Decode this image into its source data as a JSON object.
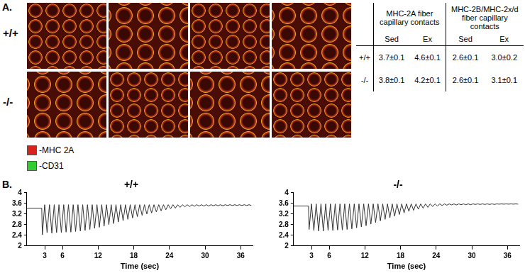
{
  "panel_a": {
    "label": "A.",
    "rows": [
      "+/+",
      "-/-"
    ],
    "legend": [
      {
        "label": "-MHC 2A",
        "color": "#d8241c"
      },
      {
        "label": "-CD31",
        "color": "#33cc33"
      }
    ],
    "table": {
      "header_groups": [
        "MHC-2A fiber capillary contacts",
        "MHC-2B/MHC-2x/d fiber capillary contacts"
      ],
      "header": [
        "Sed",
        "Ex",
        "Sed",
        "Ex"
      ],
      "rows": [
        [
          "+/+",
          "3.7±0.1",
          "4.6±0.1",
          "2.6±0.1",
          "3.0±0.2"
        ],
        [
          "-/-",
          "3.8±0.1",
          "4.2±0.1",
          "2.6±0.1",
          "3.1±0.1"
        ]
      ]
    }
  },
  "panel_b": {
    "label": "B."
  },
  "chart_data": [
    {
      "type": "line",
      "title": "+/+",
      "x_label": "Time (sec)",
      "color": "#333333",
      "grid": false,
      "xlim": [
        0,
        38
      ],
      "ylim": [
        2,
        4
      ],
      "xticks": [
        3,
        6,
        12,
        18,
        24,
        30,
        36
      ],
      "yticks": [
        2,
        2.4,
        2.8,
        3.2,
        3.6,
        4
      ],
      "x": [
        0,
        2.5,
        2.6,
        3.0,
        3.4,
        3.8,
        4.2,
        4.6,
        5.0,
        5.4,
        5.8,
        6.2,
        6.6,
        7.0,
        7.4,
        7.8,
        8.2,
        8.6,
        9.0,
        9.4,
        9.8,
        10.2,
        10.6,
        11.0,
        11.4,
        11.8,
        12.2,
        12.6,
        13.0,
        13.4,
        13.8,
        14.2,
        14.6,
        15.0,
        15.4,
        15.8,
        16.2,
        16.6,
        17.0,
        17.4,
        17.8,
        18.2,
        18.6,
        19.0,
        19.4,
        19.8,
        20.2,
        20.6,
        21.0,
        21.4,
        21.8,
        22.2,
        22.6,
        23.0,
        23.4,
        23.8,
        24.2,
        24.6,
        25.0,
        25.4,
        25.8,
        26.2,
        26.6,
        27.0,
        27.4,
        27.8,
        28.2,
        28.6,
        29.0,
        29.4,
        29.8,
        30.2,
        30.6,
        31.0,
        31.4,
        31.8,
        32.2,
        32.6,
        33.0,
        33.4,
        33.8,
        34.2,
        34.6,
        35.0,
        35.4,
        35.8,
        36.2,
        36.6,
        37.0,
        37.4,
        37.8
      ],
      "values": [
        3.42,
        3.42,
        2.42,
        3.55,
        2.5,
        3.55,
        2.48,
        3.55,
        2.5,
        3.55,
        2.5,
        3.55,
        2.52,
        3.55,
        2.52,
        3.55,
        2.54,
        3.55,
        2.56,
        3.55,
        2.58,
        3.55,
        2.62,
        3.55,
        2.66,
        3.55,
        2.7,
        3.55,
        2.74,
        3.55,
        2.8,
        3.55,
        2.84,
        3.55,
        2.9,
        3.55,
        2.95,
        3.55,
        3.0,
        3.55,
        3.05,
        3.55,
        3.1,
        3.55,
        3.15,
        3.55,
        3.2,
        3.55,
        3.24,
        3.55,
        3.28,
        3.55,
        3.32,
        3.55,
        3.36,
        3.55,
        3.4,
        3.55,
        3.42,
        3.55,
        3.45,
        3.55,
        3.47,
        3.55,
        3.48,
        3.55,
        3.49,
        3.55,
        3.5,
        3.55,
        3.5,
        3.55,
        3.5,
        3.55,
        3.51,
        3.55,
        3.51,
        3.55,
        3.51,
        3.55,
        3.52,
        3.55,
        3.52,
        3.55,
        3.52,
        3.55,
        3.52,
        3.55,
        3.52,
        3.55,
        3.52
      ]
    },
    {
      "type": "line",
      "title": "-/-",
      "x_label": "Time (sec)",
      "color": "#333333",
      "grid": false,
      "xlim": [
        0,
        38
      ],
      "ylim": [
        2,
        4
      ],
      "xticks": [
        3,
        6,
        12,
        18,
        24,
        30,
        36
      ],
      "yticks": [
        2,
        2.4,
        2.8,
        3.2,
        3.6,
        4
      ],
      "x": [
        0,
        2.5,
        2.6,
        3.0,
        3.4,
        3.8,
        4.2,
        4.6,
        5.0,
        5.4,
        5.8,
        6.2,
        6.6,
        7.0,
        7.4,
        7.8,
        8.2,
        8.6,
        9.0,
        9.4,
        9.8,
        10.2,
        10.6,
        11.0,
        11.4,
        11.8,
        12.2,
        12.6,
        13.0,
        13.4,
        13.8,
        14.2,
        14.6,
        15.0,
        15.4,
        15.8,
        16.2,
        16.6,
        17.0,
        17.4,
        17.8,
        18.2,
        18.6,
        19.0,
        19.4,
        19.8,
        20.2,
        20.6,
        21.0,
        21.4,
        21.8,
        22.2,
        22.6,
        23.0,
        23.4,
        23.8,
        24.2,
        24.6,
        25.0,
        25.4,
        25.8,
        26.2,
        26.6,
        27.0,
        27.4,
        27.8,
        28.2,
        28.6,
        29.0,
        29.4,
        29.8,
        30.2,
        30.6,
        31.0,
        31.4,
        31.8,
        32.2,
        32.6,
        33.0,
        33.4,
        33.8,
        34.2,
        34.6,
        35.0,
        35.4,
        35.8,
        36.2,
        36.6,
        37.0,
        37.4,
        37.8
      ],
      "values": [
        3.5,
        3.5,
        2.62,
        3.58,
        2.58,
        3.58,
        2.56,
        3.58,
        2.56,
        3.58,
        2.58,
        3.58,
        2.58,
        3.58,
        2.6,
        3.58,
        2.6,
        3.58,
        2.62,
        3.58,
        2.64,
        3.58,
        2.68,
        3.58,
        2.72,
        3.58,
        2.76,
        3.58,
        2.82,
        3.58,
        2.88,
        3.58,
        2.94,
        3.58,
        3.0,
        3.58,
        3.06,
        3.58,
        3.12,
        3.58,
        3.18,
        3.58,
        3.24,
        3.58,
        3.3,
        3.58,
        3.34,
        3.58,
        3.38,
        3.58,
        3.42,
        3.58,
        3.45,
        3.58,
        3.48,
        3.58,
        3.5,
        3.58,
        3.52,
        3.58,
        3.53,
        3.58,
        3.54,
        3.58,
        3.54,
        3.58,
        3.55,
        3.58,
        3.55,
        3.58,
        3.55,
        3.58,
        3.56,
        3.58,
        3.56,
        3.58,
        3.56,
        3.58,
        3.56,
        3.58,
        3.56,
        3.58,
        3.57,
        3.58,
        3.57,
        3.58,
        3.57,
        3.58,
        3.57,
        3.58,
        3.57
      ]
    }
  ]
}
